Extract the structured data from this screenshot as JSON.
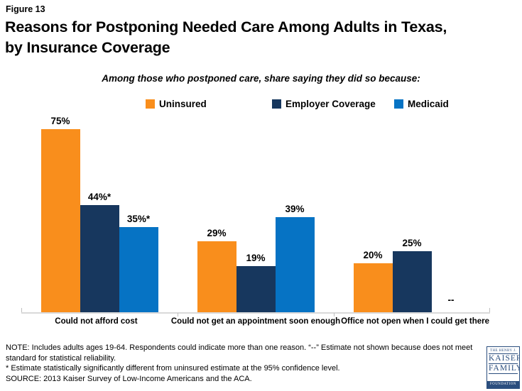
{
  "figure_label": "Figure 13",
  "title": "Reasons for Postponing Needed Care Among Adults in Texas, by Insurance Coverage",
  "subtitle": "Among those who postponed care, share saying they did so because:",
  "chart_data": {
    "type": "bar",
    "categories": [
      "Could not afford cost",
      "Could not get an appointment soon enough",
      "Office not open when I could get there"
    ],
    "series": [
      {
        "name": "Uninsured",
        "color": "#F98E1C",
        "values": [
          75,
          29,
          20
        ],
        "labels": [
          "75%",
          "29%",
          "20%"
        ]
      },
      {
        "name": "Employer Coverage",
        "color": "#17375E",
        "values": [
          44,
          19,
          25
        ],
        "labels": [
          "44%*",
          "19%",
          "25%"
        ]
      },
      {
        "name": "Medicaid",
        "color": "#0673C4",
        "values": [
          35,
          39,
          null
        ],
        "labels": [
          "35%*",
          "39%",
          "--"
        ]
      }
    ],
    "ylim": [
      0,
      82
    ],
    "grid": false,
    "legend_position": "top",
    "null_marker": "--"
  },
  "notes": [
    "NOTE: Includes adults ages 19-64. Respondents could indicate more than one reason. “--” Estimate not shown because does not meet standard for statistical reliability.",
    "* Estimate statistically significantly different from uninsured estimate at the 95% confidence level.",
    "SOURCE: 2013 Kaiser Survey of Low-Income Americans and the ACA."
  ],
  "logo": {
    "line1": "THE HENRY J.",
    "line2": "KAISER",
    "line3": "FAMILY",
    "line4": "FOUNDATION",
    "color": "#2B4E7E"
  },
  "colors": {
    "axis": "#D9D9D9",
    "background": "#FFFFFF",
    "text": "#000000"
  }
}
